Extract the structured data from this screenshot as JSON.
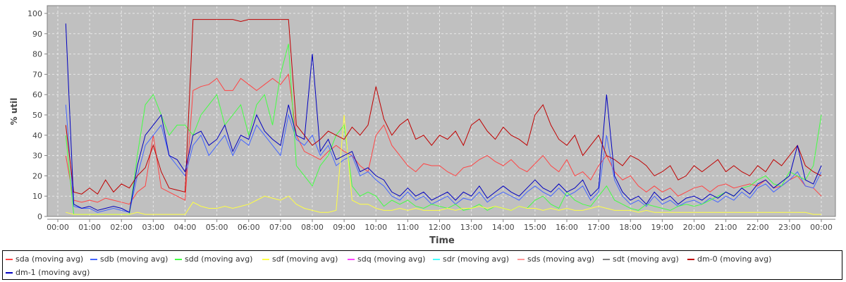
{
  "chart_data": {
    "type": "line",
    "title": "",
    "xlabel": "Time",
    "ylabel": "% util",
    "ylim": [
      0,
      100
    ],
    "yticks": [
      "0",
      "10",
      "20",
      "30",
      "40",
      "50",
      "60",
      "70",
      "80",
      "90",
      "100"
    ],
    "xticks": [
      "00:00",
      "01:00",
      "02:00",
      "03:00",
      "04:00",
      "05:00",
      "06:00",
      "07:00",
      "08:00",
      "09:00",
      "10:00",
      "11:00",
      "12:00",
      "13:00",
      "14:00",
      "15:00",
      "16:00",
      "17:00",
      "18:00",
      "19:00",
      "20:00",
      "21:00",
      "22:00",
      "23:00",
      "00:00"
    ],
    "x_step_minutes": 15,
    "grid": true,
    "legend_position": "bottom",
    "series": [
      {
        "name": "sda (moving avg)",
        "color": "#ff4444",
        "values": [
          null,
          30,
          8,
          7,
          8,
          7,
          9,
          8,
          7,
          6,
          12,
          15,
          40,
          14,
          12,
          10,
          8,
          62,
          64,
          65,
          68,
          62,
          62,
          68,
          65,
          62,
          65,
          68,
          65,
          70,
          40,
          32,
          30,
          28,
          32,
          35,
          32,
          30,
          25,
          22,
          40,
          45,
          35,
          30,
          25,
          22,
          26,
          25,
          25,
          22,
          20,
          24,
          25,
          28,
          30,
          27,
          25,
          28,
          24,
          22,
          26,
          30,
          25,
          22,
          28,
          20,
          22,
          18,
          25,
          30,
          22,
          18,
          20,
          15,
          12,
          15,
          12,
          14,
          10,
          12,
          14,
          15,
          12,
          15,
          16,
          14,
          15,
          16,
          15,
          18,
          14,
          15,
          18,
          20,
          15,
          14,
          10
        ]
      },
      {
        "name": "sdb (moving avg)",
        "color": "#4466ff",
        "values": [
          null,
          55,
          5,
          4,
          4,
          2,
          3,
          4,
          3,
          2,
          20,
          35,
          40,
          45,
          30,
          25,
          20,
          35,
          40,
          30,
          35,
          40,
          30,
          38,
          35,
          45,
          40,
          35,
          30,
          50,
          38,
          35,
          40,
          30,
          35,
          25,
          28,
          30,
          20,
          22,
          18,
          15,
          10,
          8,
          12,
          8,
          10,
          6,
          8,
          10,
          6,
          9,
          8,
          12,
          7,
          10,
          12,
          10,
          8,
          12,
          15,
          12,
          10,
          14,
          10,
          12,
          15,
          8,
          12,
          40,
          18,
          10,
          6,
          8,
          5,
          10,
          6,
          8,
          5,
          7,
          8,
          6,
          9,
          7,
          10,
          8,
          12,
          9,
          14,
          16,
          12,
          15,
          18,
          22,
          15,
          14,
          22
        ]
      },
      {
        "name": "sdd (moving avg)",
        "color": "#44ff44",
        "values": [
          null,
          40,
          1,
          1,
          1,
          1,
          1,
          1,
          1,
          1,
          30,
          55,
          60,
          50,
          40,
          45,
          45,
          40,
          50,
          55,
          60,
          45,
          50,
          55,
          40,
          55,
          60,
          45,
          70,
          85,
          25,
          20,
          15,
          25,
          30,
          40,
          45,
          15,
          10,
          12,
          10,
          5,
          8,
          6,
          8,
          5,
          4,
          6,
          5,
          4,
          6,
          3,
          4,
          6,
          3,
          5,
          4,
          3,
          5,
          4,
          8,
          10,
          6,
          4,
          12,
          8,
          6,
          5,
          10,
          15,
          8,
          6,
          4,
          3,
          6,
          5,
          4,
          3,
          5,
          6,
          5,
          6,
          8,
          10,
          12,
          10,
          14,
          15,
          18,
          20,
          16,
          15,
          22,
          20,
          18,
          25,
          50
        ]
      },
      {
        "name": "sdf (moving avg)",
        "color": "#ffff44",
        "values": [
          null,
          2,
          1,
          1,
          1,
          1,
          1,
          1,
          1,
          1,
          2,
          1,
          1,
          1,
          1,
          1,
          1,
          7,
          5,
          4,
          4,
          5,
          4,
          5,
          6,
          8,
          10,
          9,
          8,
          10,
          6,
          4,
          3,
          2,
          2,
          3,
          50,
          8,
          6,
          6,
          4,
          3,
          3,
          4,
          3,
          4,
          3,
          3,
          3,
          4,
          3,
          4,
          4,
          5,
          4,
          5,
          4,
          3,
          5,
          4,
          4,
          3,
          4,
          3,
          4,
          3,
          3,
          4,
          5,
          4,
          3,
          3,
          3,
          2,
          3,
          2,
          2,
          2,
          2,
          2,
          2,
          2,
          2,
          2,
          2,
          2,
          2,
          2,
          2,
          2,
          2,
          2,
          2,
          2,
          2,
          1,
          1
        ]
      },
      {
        "name": "sdq (moving avg)",
        "color": "#ff44ff",
        "values": []
      },
      {
        "name": "sdr (moving avg)",
        "color": "#44ffff",
        "values": []
      },
      {
        "name": "sds (moving avg)",
        "color": "#ff9999",
        "values": []
      },
      {
        "name": "sdt (moving avg)",
        "color": "#808080",
        "values": []
      },
      {
        "name": "dm-0 (moving avg)",
        "color": "#c00000",
        "values": [
          null,
          45,
          12,
          11,
          14,
          11,
          18,
          12,
          16,
          14,
          20,
          24,
          35,
          22,
          14,
          13,
          12,
          97,
          97,
          97,
          97,
          97,
          97,
          96,
          97,
          97,
          97,
          97,
          97,
          97,
          45,
          40,
          35,
          38,
          42,
          40,
          38,
          44,
          40,
          45,
          64,
          48,
          40,
          45,
          48,
          38,
          40,
          35,
          40,
          38,
          42,
          35,
          45,
          48,
          42,
          38,
          44,
          40,
          38,
          35,
          50,
          55,
          45,
          38,
          35,
          40,
          30,
          35,
          40,
          30,
          28,
          25,
          30,
          28,
          25,
          20,
          22,
          25,
          18,
          20,
          25,
          22,
          25,
          28,
          22,
          25,
          22,
          20,
          25,
          22,
          28,
          25,
          30,
          35,
          25,
          22,
          20
        ]
      },
      {
        "name": "dm-1 (moving avg)",
        "color": "#0000c0",
        "values": [
          null,
          95,
          6,
          4,
          5,
          3,
          4,
          5,
          4,
          2,
          25,
          40,
          45,
          50,
          30,
          28,
          22,
          40,
          42,
          35,
          38,
          45,
          32,
          40,
          38,
          50,
          42,
          38,
          35,
          55,
          40,
          38,
          80,
          32,
          38,
          28,
          30,
          32,
          22,
          24,
          20,
          18,
          12,
          10,
          14,
          10,
          12,
          8,
          10,
          12,
          8,
          12,
          10,
          15,
          9,
          12,
          15,
          12,
          10,
          14,
          18,
          14,
          12,
          16,
          12,
          14,
          18,
          10,
          14,
          60,
          20,
          12,
          8,
          10,
          6,
          12,
          8,
          10,
          6,
          9,
          10,
          8,
          11,
          9,
          12,
          10,
          14,
          11,
          16,
          18,
          14,
          17,
          20,
          35,
          18,
          16,
          25
        ]
      }
    ]
  }
}
